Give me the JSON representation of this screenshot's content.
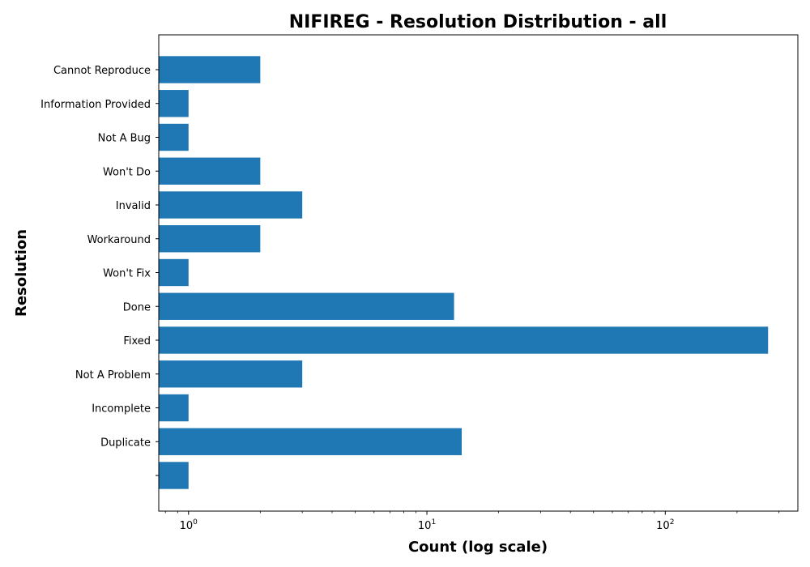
{
  "chart_data": {
    "type": "bar",
    "orientation": "horizontal",
    "title": "NIFIREG - Resolution Distribution - all",
    "xlabel": "Count (log scale)",
    "ylabel": "Resolution",
    "xscale": "log",
    "xlim": [
      0.75,
      360
    ],
    "x_major_ticks": [
      1,
      10,
      100
    ],
    "x_major_tick_labels": [
      {
        "base": "10",
        "exp": "0"
      },
      {
        "base": "10",
        "exp": "1"
      },
      {
        "base": "10",
        "exp": "2"
      }
    ],
    "categories": [
      "Cannot Reproduce",
      "Information Provided",
      "Not A Bug",
      "Won't Do",
      "Invalid",
      "Workaround",
      "Won't Fix",
      "Done",
      "Fixed",
      "Not A Problem",
      "Incomplete",
      "Duplicate",
      ""
    ],
    "values": [
      2,
      1,
      1,
      2,
      3,
      2,
      1,
      13,
      270,
      3,
      1,
      14,
      1
    ],
    "bar_color": "#1f77b4",
    "grid": false,
    "legend": "none"
  }
}
